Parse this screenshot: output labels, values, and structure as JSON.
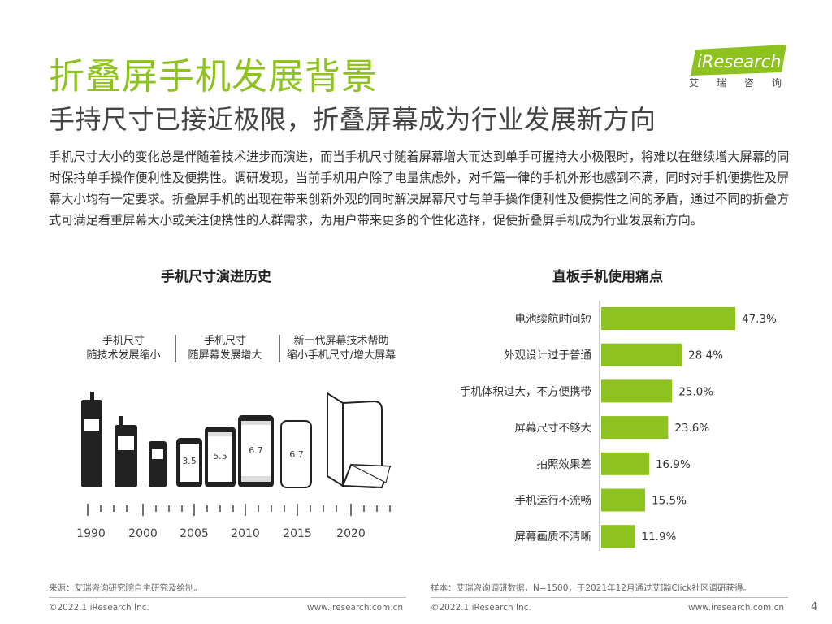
{
  "title": "折叠屏手机发展背景",
  "subtitle": "手持尺寸已接近极限，折叠屏幕成为行业发展新方向",
  "logo": {
    "main": "iResearch",
    "sub": "艾瑞咨询"
  },
  "body_text": "手机尺寸大小的变化总是伴随着技术进步而演进，而当手机尺寸随着屏幕增大而达到单手可握持大小极限时，将难以在继续增大屏幕的同时保持单手操作便利性及便携性。调研发现，当前手机用户除了电量焦虑外，对千篇一律的手机外形也感到不满，同时对手机便携性及屏幕大小均有一定要求。折叠屏手机的出现在带来创新外观的同时解决屏幕尺寸与单手操作便利性及便携性之间的矛盾，通过不同的折叠方式可满足看重屏幕大小或关注便携性的人群需求，为用户带来更多的个性化选择，促使折叠屏手机成为行业发展新方向。",
  "left_chart": {
    "title": "手机尺寸演进历史",
    "phase1": [
      "手机尺寸",
      "随技术发展缩小"
    ],
    "phase2": [
      "手机尺寸",
      "随屏幕发展增大"
    ],
    "phase3": [
      "新一代屏幕技术帮助",
      "缩小手机尺寸/增大屏幕"
    ],
    "screen_sizes": [
      "3.5",
      "5.5",
      "6.7",
      "6.7"
    ],
    "years": [
      "1990",
      "2000",
      "2005",
      "2010",
      "2015",
      "2020"
    ]
  },
  "chart_data": {
    "type": "bar",
    "title": "直板手机使用痛点",
    "orientation": "horizontal",
    "categories": [
      "电池续航时间短",
      "外观设计过于普通",
      "手机体积过大，不方便携带",
      "屏幕尺寸不够大",
      "拍照效果差",
      "手机运行不流畅",
      "屏幕画质不清晰"
    ],
    "values": [
      47.3,
      28.4,
      25.0,
      23.6,
      16.9,
      15.5,
      11.9
    ],
    "value_labels": [
      "47.3%",
      "28.4%",
      "25.0%",
      "23.6%",
      "16.9%",
      "15.5%",
      "11.9%"
    ],
    "unit": "%",
    "bar_color": "#8dc21f",
    "xlim": [
      0,
      50
    ]
  },
  "footer": {
    "source_left": "来源：艾瑞咨询研究院自主研究及绘制。",
    "source_right": "样本：艾瑞咨询调研数据，N=1500，于2021年12月通过艾瑞iClick社区调研获得。",
    "copyright_left": "©2022.1 iResearch Inc.",
    "url_left": "www.iresearch.com.cn",
    "copyright_right": "©2022.1 iResearch Inc.",
    "url_right": "www.iresearch.com.cn",
    "page": "4"
  },
  "colors": {
    "accent": "#8dc21f",
    "text": "#333333"
  }
}
